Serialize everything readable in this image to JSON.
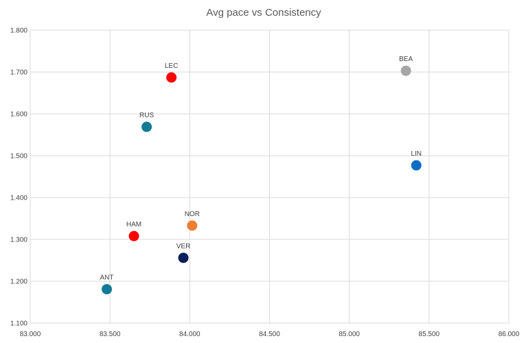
{
  "chart_data": {
    "type": "scatter",
    "title": "Avg pace vs Consistency",
    "xlabel": "",
    "ylabel": "",
    "xlim": [
      83.0,
      86.0
    ],
    "ylim": [
      1.1,
      1.8
    ],
    "x_ticks": [
      "83.000",
      "83.500",
      "84.000",
      "84.500",
      "85.000",
      "85.500",
      "86.000"
    ],
    "y_ticks": [
      "1.100",
      "1.200",
      "1.300",
      "1.400",
      "1.500",
      "1.600",
      "1.700",
      "1.800"
    ],
    "grid": true,
    "points": [
      {
        "label": "LEC",
        "x": 83.885,
        "y": 1.687,
        "color": "#ff0000"
      },
      {
        "label": "RUS",
        "x": 83.73,
        "y": 1.569,
        "color": "#127b96"
      },
      {
        "label": "BEA",
        "x": 85.355,
        "y": 1.703,
        "color": "#a6a6a6"
      },
      {
        "label": "LIN",
        "x": 85.42,
        "y": 1.477,
        "color": "#0a6fc4"
      },
      {
        "label": "NOR",
        "x": 84.015,
        "y": 1.333,
        "color": "#ed7d31"
      },
      {
        "label": "HAM",
        "x": 83.65,
        "y": 1.308,
        "color": "#ff0000"
      },
      {
        "label": "VER",
        "x": 83.96,
        "y": 1.256,
        "color": "#0a1e5a"
      },
      {
        "label": "ANT",
        "x": 83.48,
        "y": 1.181,
        "color": "#127b96"
      }
    ]
  }
}
